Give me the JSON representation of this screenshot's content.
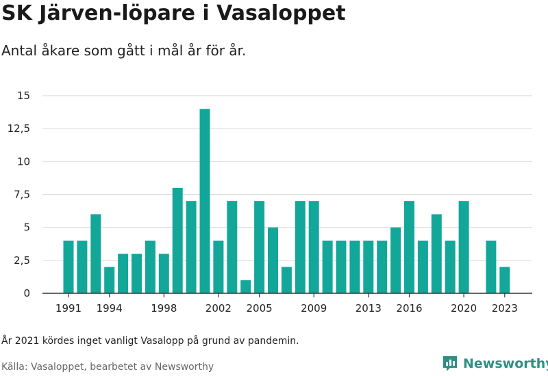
{
  "title": "SK Järven-löpare i Vasaloppet",
  "subtitle": "Antal åkare som gått i mål år för år.",
  "footnote": "År 2021 kördes inget vanligt Vasalopp på grund av pandemin.",
  "source": "Källa: Vasaloppet, bearbetet av Newsworthy",
  "brand": {
    "name": "Newsworthy",
    "icon": "newsworthy-logo-icon",
    "color": "#2f8f83"
  },
  "colors": {
    "bar": "#13a79a",
    "grid": "#dddddd",
    "axis": "#333333"
  },
  "chart_data": {
    "type": "bar",
    "categories": [
      "1991",
      "1992",
      "1993",
      "1994",
      "1995",
      "1996",
      "1997",
      "1998",
      "1999",
      "2000",
      "2001",
      "2002",
      "2003",
      "2004",
      "2005",
      "2006",
      "2007",
      "2008",
      "2009",
      "2010",
      "2011",
      "2012",
      "2013",
      "2014",
      "2015",
      "2016",
      "2017",
      "2018",
      "2019",
      "2020",
      "2021",
      "2022",
      "2023"
    ],
    "values": [
      4,
      4,
      6,
      2,
      3,
      3,
      4,
      3,
      8,
      7,
      14,
      4,
      7,
      1,
      7,
      5,
      2,
      7,
      7,
      4,
      4,
      4,
      4,
      4,
      5,
      7,
      4,
      6,
      4,
      7,
      null,
      4,
      2
    ],
    "ylim": [
      0,
      15
    ],
    "yticks": [
      0,
      2.5,
      5,
      7.5,
      10,
      12.5,
      15
    ],
    "ytick_labels": [
      "0",
      "2,5",
      "5",
      "7,5",
      "10",
      "12,5",
      "15"
    ],
    "xtick_labels": [
      "1991",
      "1994",
      "1998",
      "2002",
      "2005",
      "2009",
      "2013",
      "2016",
      "2020",
      "2023"
    ],
    "grid": true,
    "legend": "none"
  }
}
